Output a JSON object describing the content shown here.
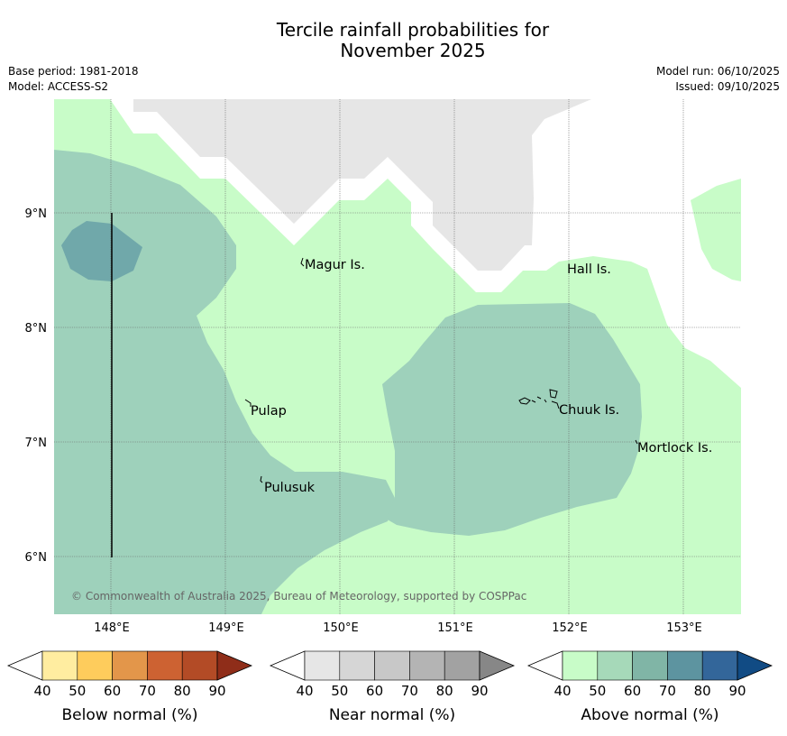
{
  "title_line1": "Tercile rainfall probabilities for",
  "title_line2": "November 2025",
  "base_period": "Base period: 1981-2018",
  "model": "Model: ACCESS-S2",
  "model_run": "Model run: 06/10/2025",
  "issued": "Issued: 09/10/2025",
  "copyright": "© Commonwealth of Australia 2025, Bureau of Meteorology, supported by COSPPac",
  "lat_labels": [
    "9°N",
    "8°N",
    "7°N",
    "6°N"
  ],
  "lon_labels": [
    "148°E",
    "149°E",
    "150°E",
    "151°E",
    "152°E",
    "153°E"
  ],
  "places": [
    "Magur Is.",
    "Hall Is.",
    "Pulap",
    "Chuuk Is.",
    "Mortlock Is.",
    "Pulusuk"
  ],
  "colorbars": [
    {
      "title": "Below normal (%)",
      "ticks": [
        "40",
        "50",
        "60",
        "70",
        "80",
        "90"
      ],
      "colors": [
        "#ffeda0",
        "#fecc5c",
        "#e3964a",
        "#cd6232",
        "#b34b26",
        "#8f2d19"
      ]
    },
    {
      "title": "Near normal (%)",
      "ticks": [
        "40",
        "50",
        "60",
        "70",
        "80",
        "90"
      ],
      "colors": [
        "#e6e6e6",
        "#d6d6d6",
        "#c8c8c8",
        "#b4b4b4",
        "#a2a2a2",
        "#878787"
      ]
    },
    {
      "title": "Above normal (%)",
      "ticks": [
        "40",
        "50",
        "60",
        "70",
        "80",
        "90"
      ],
      "colors": [
        "#c8fcc8",
        "#a6d9b9",
        "#80b5a6",
        "#5d94a0",
        "#33669a",
        "#114b84"
      ]
    }
  ],
  "colors": {
    "above_40_50": "#c8fcc8",
    "above_50_60": "#9ed1bb",
    "above_60_70": "#70a8aa",
    "near_40_50": "#e6e6e6"
  }
}
